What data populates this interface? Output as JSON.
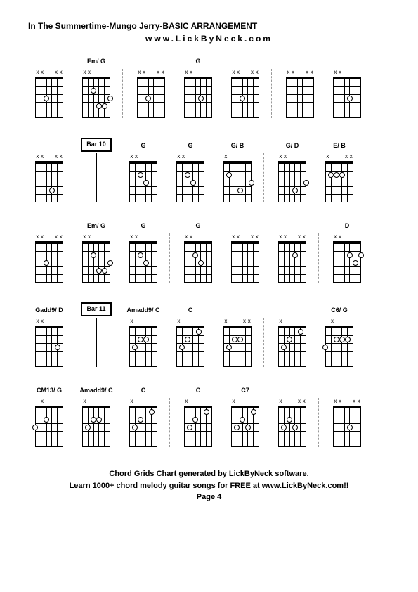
{
  "title": "In The Summertime-Mungo Jerry-BASIC ARRANGEMENT",
  "subtitle": "www.LickByNeck.com",
  "footer_line1": "Chord Grids Chart generated by LickByNeck software.",
  "footer_line2": "Learn 1000+ chord melody guitar songs for FREE at www.LickByNeck.com!!",
  "footer_page": "Page 4",
  "colors": {
    "bg": "#ffffff",
    "fg": "#000000",
    "dashed": "#999999"
  },
  "diagram_frets": 5,
  "diagram_strings": 6,
  "rows": [
    {
      "items": [
        {
          "type": "chord",
          "label": "",
          "markers": [
            "x",
            "x",
            "",
            "",
            "x",
            "x"
          ],
          "dots": [
            {
              "s": 2,
              "f": 3
            }
          ]
        },
        {
          "type": "chord",
          "label": "Em/ G",
          "markers": [
            "x",
            "x",
            "",
            "",
            "",
            ""
          ],
          "dots": [
            {
              "s": 2,
              "f": 2
            },
            {
              "s": 3,
              "f": 4
            },
            {
              "s": 4,
              "f": 4
            },
            {
              "s": 5,
              "f": 3
            }
          ]
        },
        {
          "type": "dashed"
        },
        {
          "type": "chord",
          "label": "",
          "markers": [
            "x",
            "x",
            "",
            "",
            "x",
            "x"
          ],
          "dots": [
            {
              "s": 2,
              "f": 3
            }
          ]
        },
        {
          "type": "chord",
          "label": "G",
          "markers": [
            "x",
            "x",
            "",
            "",
            "",
            ""
          ],
          "dots": [
            {
              "s": 3,
              "f": 3
            }
          ]
        },
        {
          "type": "chord",
          "label": "",
          "markers": [
            "x",
            "x",
            "",
            "",
            "x",
            "x"
          ],
          "dots": [
            {
              "s": 2,
              "f": 3
            }
          ]
        },
        {
          "type": "dashed"
        },
        {
          "type": "chord",
          "label": "",
          "markers": [
            "x",
            "x",
            "",
            "",
            "x",
            "x"
          ],
          "dots": []
        },
        {
          "type": "chord",
          "label": "",
          "markers": [
            "x",
            "x",
            "",
            "",
            "",
            ""
          ],
          "dots": [
            {
              "s": 3,
              "f": 3
            }
          ]
        }
      ]
    },
    {
      "items": [
        {
          "type": "chord",
          "label": "",
          "markers": [
            "x",
            "x",
            "",
            "",
            "x",
            "x"
          ],
          "dots": [
            {
              "s": 3,
              "f": 4
            }
          ]
        },
        {
          "type": "bar",
          "label": "Bar 10"
        },
        {
          "type": "chord",
          "label": "G",
          "markers": [
            "x",
            "x",
            "",
            "",
            "",
            ""
          ],
          "dots": [
            {
              "s": 2,
              "f": 2
            },
            {
              "s": 3,
              "f": 3
            }
          ]
        },
        {
          "type": "chord",
          "label": "G",
          "markers": [
            "x",
            "x",
            "",
            "",
            "",
            ""
          ],
          "dots": [
            {
              "s": 2,
              "f": 2
            },
            {
              "s": 3,
              "f": 3
            }
          ]
        },
        {
          "type": "chord",
          "label": "G/ B",
          "markers": [
            "x",
            "",
            "",
            "",
            "",
            ""
          ],
          "dots": [
            {
              "s": 1,
              "f": 2
            },
            {
              "s": 3,
              "f": 4
            },
            {
              "s": 5,
              "f": 3
            }
          ]
        },
        {
          "type": "dashed"
        },
        {
          "type": "chord",
          "label": "G/ D",
          "markers": [
            "x",
            "x",
            "",
            "",
            "",
            ""
          ],
          "dots": [
            {
              "s": 3,
              "f": 4
            },
            {
              "s": 5,
              "f": 3
            }
          ]
        },
        {
          "type": "chord",
          "label": "E/ B",
          "markers": [
            "x",
            "",
            "",
            "",
            "x",
            "x"
          ],
          "dots": [
            {
              "s": 1,
              "f": 2
            },
            {
              "s": 2,
              "f": 2
            },
            {
              "s": 3,
              "f": 2
            }
          ]
        }
      ]
    },
    {
      "items": [
        {
          "type": "chord",
          "label": "",
          "markers": [
            "x",
            "x",
            "",
            "",
            "x",
            "x"
          ],
          "dots": [
            {
              "s": 2,
              "f": 3
            }
          ]
        },
        {
          "type": "chord",
          "label": "Em/ G",
          "markers": [
            "x",
            "x",
            "",
            "",
            "",
            ""
          ],
          "dots": [
            {
              "s": 2,
              "f": 2
            },
            {
              "s": 3,
              "f": 4
            },
            {
              "s": 4,
              "f": 4
            },
            {
              "s": 5,
              "f": 3
            }
          ]
        },
        {
          "type": "chord",
          "label": "G",
          "markers": [
            "x",
            "x",
            "",
            "",
            "",
            ""
          ],
          "dots": [
            {
              "s": 2,
              "f": 2
            },
            {
              "s": 3,
              "f": 3
            }
          ]
        },
        {
          "type": "dashed"
        },
        {
          "type": "chord",
          "label": "G",
          "markers": [
            "x",
            "x",
            "",
            "",
            "",
            ""
          ],
          "dots": [
            {
              "s": 2,
              "f": 2
            },
            {
              "s": 3,
              "f": 3
            }
          ]
        },
        {
          "type": "chord",
          "label": "",
          "markers": [
            "x",
            "x",
            "",
            "",
            "x",
            "x"
          ],
          "dots": []
        },
        {
          "type": "chord",
          "label": "",
          "markers": [
            "x",
            "x",
            "",
            "",
            "x",
            "x"
          ],
          "dots": [
            {
              "s": 3,
              "f": 2
            }
          ]
        },
        {
          "type": "dashed"
        },
        {
          "type": "chord",
          "label": "D",
          "markers": [
            "x",
            "x",
            "",
            "",
            "",
            ""
          ],
          "dots": [
            {
              "s": 3,
              "f": 2
            },
            {
              "s": 4,
              "f": 3
            },
            {
              "s": 5,
              "f": 2
            }
          ]
        }
      ]
    },
    {
      "items": [
        {
          "type": "chord",
          "label": "Gadd9/ D",
          "markers": [
            "x",
            "x",
            "",
            "",
            "",
            ""
          ],
          "dots": [
            {
              "s": 4,
              "f": 3
            }
          ]
        },
        {
          "type": "bar",
          "label": "Bar 11"
        },
        {
          "type": "chord",
          "label": "Amadd9/ C",
          "markers": [
            "x",
            "",
            "",
            "",
            "",
            ""
          ],
          "dots": [
            {
              "s": 1,
              "f": 3
            },
            {
              "s": 2,
              "f": 2
            },
            {
              "s": 3,
              "f": 2
            }
          ]
        },
        {
          "type": "chord",
          "label": "C",
          "markers": [
            "x",
            "",
            "",
            "",
            "",
            ""
          ],
          "dots": [
            {
              "s": 1,
              "f": 3
            },
            {
              "s": 2,
              "f": 2
            },
            {
              "s": 4,
              "f": 1
            }
          ]
        },
        {
          "type": "chord",
          "label": "",
          "markers": [
            "x",
            "",
            "",
            "",
            "x",
            "x"
          ],
          "dots": [
            {
              "s": 1,
              "f": 3
            },
            {
              "s": 2,
              "f": 2
            },
            {
              "s": 3,
              "f": 2
            }
          ]
        },
        {
          "type": "dashed"
        },
        {
          "type": "chord",
          "label": "",
          "markers": [
            "x",
            "",
            "",
            "",
            "",
            ""
          ],
          "dots": [
            {
              "s": 1,
              "f": 3
            },
            {
              "s": 2,
              "f": 2
            },
            {
              "s": 4,
              "f": 1
            }
          ]
        },
        {
          "type": "chord",
          "label": "C6/ G",
          "markers": [
            "",
            "x",
            "",
            "",
            "",
            ""
          ],
          "dots": [
            {
              "s": 0,
              "f": 3
            },
            {
              "s": 2,
              "f": 2
            },
            {
              "s": 3,
              "f": 2
            },
            {
              "s": 4,
              "f": 2
            }
          ]
        }
      ]
    },
    {
      "items": [
        {
          "type": "chord",
          "label": "CM13/ G",
          "markers": [
            "",
            "x",
            "",
            "",
            "",
            ""
          ],
          "dots": [
            {
              "s": 0,
              "f": 3
            },
            {
              "s": 2,
              "f": 2
            }
          ]
        },
        {
          "type": "chord",
          "label": "Amadd9/ C",
          "markers": [
            "x",
            "",
            "",
            "",
            "",
            ""
          ],
          "dots": [
            {
              "s": 1,
              "f": 3
            },
            {
              "s": 2,
              "f": 2
            },
            {
              "s": 3,
              "f": 2
            }
          ]
        },
        {
          "type": "chord",
          "label": "C",
          "markers": [
            "x",
            "",
            "",
            "",
            "",
            ""
          ],
          "dots": [
            {
              "s": 1,
              "f": 3
            },
            {
              "s": 2,
              "f": 2
            },
            {
              "s": 4,
              "f": 1
            }
          ]
        },
        {
          "type": "dashed"
        },
        {
          "type": "chord",
          "label": "C",
          "markers": [
            "x",
            "",
            "",
            "",
            "",
            ""
          ],
          "dots": [
            {
              "s": 1,
              "f": 3
            },
            {
              "s": 2,
              "f": 2
            },
            {
              "s": 4,
              "f": 1
            }
          ]
        },
        {
          "type": "chord",
          "label": "C7",
          "markers": [
            "x",
            "",
            "",
            "",
            "",
            ""
          ],
          "dots": [
            {
              "s": 1,
              "f": 3
            },
            {
              "s": 2,
              "f": 2
            },
            {
              "s": 3,
              "f": 3
            },
            {
              "s": 4,
              "f": 1
            }
          ]
        },
        {
          "type": "chord",
          "label": "",
          "markers": [
            "x",
            "",
            "",
            "",
            "x",
            "x"
          ],
          "dots": [
            {
              "s": 1,
              "f": 3
            },
            {
              "s": 2,
              "f": 2
            },
            {
              "s": 3,
              "f": 3
            }
          ]
        },
        {
          "type": "dashed"
        },
        {
          "type": "chord",
          "label": "",
          "markers": [
            "x",
            "x",
            "",
            "",
            "x",
            "x"
          ],
          "dots": [
            {
              "s": 3,
              "f": 3
            }
          ]
        }
      ]
    }
  ]
}
